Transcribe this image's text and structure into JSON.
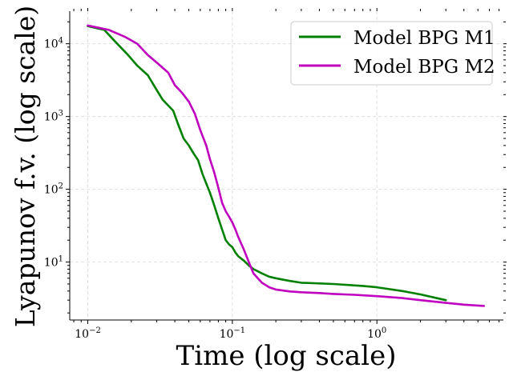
{
  "chart_data": {
    "type": "line",
    "xlabel": "Time (log scale)",
    "ylabel": "Lyapunov f.v. (log scale)",
    "xscale": "log",
    "yscale": "log",
    "xlim": [
      0.0075,
      7.5
    ],
    "ylim": [
      1.6,
      28000
    ],
    "x_ticks": [
      {
        "value": 0.01,
        "base": "10",
        "exp": "−2"
      },
      {
        "value": 0.1,
        "base": "10",
        "exp": "−1"
      },
      {
        "value": 1,
        "base": "10",
        "exp": "0"
      }
    ],
    "y_ticks": [
      {
        "value": 10,
        "base": "10",
        "exp": "1"
      },
      {
        "value": 100,
        "base": "10",
        "exp": "2"
      },
      {
        "value": 1000,
        "base": "10",
        "exp": "3"
      },
      {
        "value": 10000,
        "base": "10",
        "exp": "4"
      }
    ],
    "grid": true,
    "legend_position": "top-right",
    "series": [
      {
        "name": "Model BPG M1",
        "color": "#008000",
        "x": [
          0.01,
          0.013,
          0.016,
          0.019,
          0.022,
          0.026,
          0.03,
          0.033,
          0.039,
          0.042,
          0.046,
          0.05,
          0.054,
          0.058,
          0.062,
          0.066,
          0.07,
          0.075,
          0.08,
          0.085,
          0.09,
          0.095,
          0.1,
          0.105,
          0.11,
          0.12,
          0.13,
          0.14,
          0.16,
          0.18,
          0.2,
          0.25,
          0.3,
          0.5,
          0.8,
          1.0,
          1.5,
          2.0,
          3.0
        ],
        "y": [
          17500,
          15500,
          10000,
          7000,
          5000,
          3700,
          2300,
          1700,
          1200,
          800,
          500,
          400,
          310,
          250,
          165,
          120,
          90,
          60,
          40,
          28,
          20,
          17.5,
          16,
          13.5,
          12,
          10.5,
          9,
          8,
          7,
          6.3,
          6.0,
          5.5,
          5.2,
          5.0,
          4.7,
          4.5,
          4.0,
          3.6,
          3.0
        ]
      },
      {
        "name": "Model BPG M2",
        "color": "#bf00bf",
        "x": [
          0.01,
          0.014,
          0.018,
          0.022,
          0.026,
          0.03,
          0.036,
          0.04,
          0.045,
          0.05,
          0.055,
          0.06,
          0.066,
          0.07,
          0.075,
          0.08,
          0.085,
          0.09,
          0.095,
          0.1,
          0.105,
          0.11,
          0.12,
          0.13,
          0.14,
          0.16,
          0.18,
          0.2,
          0.25,
          0.3,
          0.4,
          0.5,
          0.7,
          1.0,
          1.5,
          2.0,
          3.0,
          4.0,
          5.5
        ],
        "y": [
          17800,
          15500,
          12500,
          10000,
          7000,
          5500,
          4000,
          2700,
          2100,
          1600,
          1100,
          650,
          400,
          260,
          170,
          105,
          65,
          50,
          42,
          35,
          28,
          22,
          15,
          10,
          7,
          5.2,
          4.5,
          4.2,
          3.95,
          3.85,
          3.75,
          3.65,
          3.55,
          3.4,
          3.2,
          3.0,
          2.75,
          2.6,
          2.5
        ]
      }
    ]
  }
}
